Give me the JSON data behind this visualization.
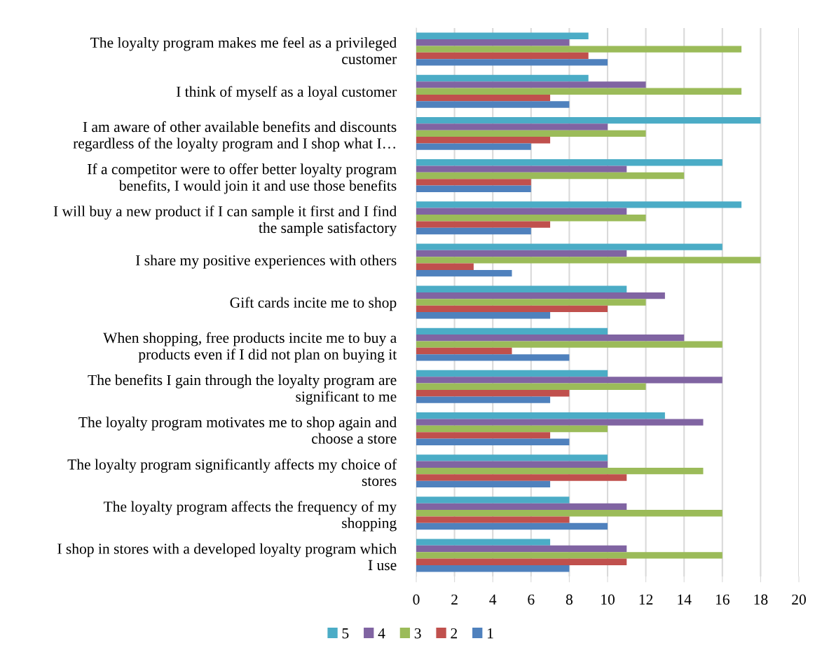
{
  "chart_data": {
    "type": "bar",
    "orientation": "horizontal",
    "categories": [
      "The loyalty program makes me feel as a privileged\ncustomer",
      "I think of myself as a loyal customer",
      "I am aware of other available benefits and discounts\nregardless of the loyalty program and I shop what I…",
      "If a competitor were to offer better loyalty program\nbenefits, I would join it and use those benefits",
      "I will buy a new product if I can sample it first and I find\nthe sample satisfactory",
      "I share my positive experiences with others",
      "Gift cards incite me to shop",
      "When shopping, free products incite me to buy a\nproducts even if I did not plan on buying it",
      "The benefits I gain through the loyalty program are\nsignificant to me",
      "The loyalty program motivates me to shop again and\nchoose a store",
      "The loyalty program significantly affects my choice of\nstores",
      "The loyalty program affects the frequency of my\nshopping",
      "I shop in stores with a developed loyalty program which\nI use"
    ],
    "series": [
      {
        "name": "5",
        "color": "#4bacc6",
        "values": [
          9,
          9,
          18,
          16,
          17,
          16,
          11,
          10,
          10,
          13,
          10,
          8,
          7
        ]
      },
      {
        "name": "4",
        "color": "#8064a2",
        "values": [
          8,
          12,
          10,
          11,
          11,
          11,
          13,
          14,
          16,
          15,
          10,
          11,
          11
        ]
      },
      {
        "name": "3",
        "color": "#9bbb59",
        "values": [
          17,
          17,
          12,
          14,
          12,
          18,
          12,
          16,
          12,
          10,
          15,
          16,
          16
        ]
      },
      {
        "name": "2",
        "color": "#c0504d",
        "values": [
          9,
          7,
          7,
          6,
          7,
          3,
          10,
          5,
          8,
          7,
          11,
          8,
          11
        ]
      },
      {
        "name": "1",
        "color": "#4f81bd",
        "values": [
          10,
          8,
          6,
          6,
          6,
          5,
          7,
          8,
          7,
          8,
          7,
          10,
          8
        ]
      }
    ],
    "xlim": [
      0,
      20
    ],
    "xticks": [
      0,
      2,
      4,
      6,
      8,
      10,
      12,
      14,
      16,
      18,
      20
    ],
    "grid": "x",
    "legend": "bottom"
  }
}
